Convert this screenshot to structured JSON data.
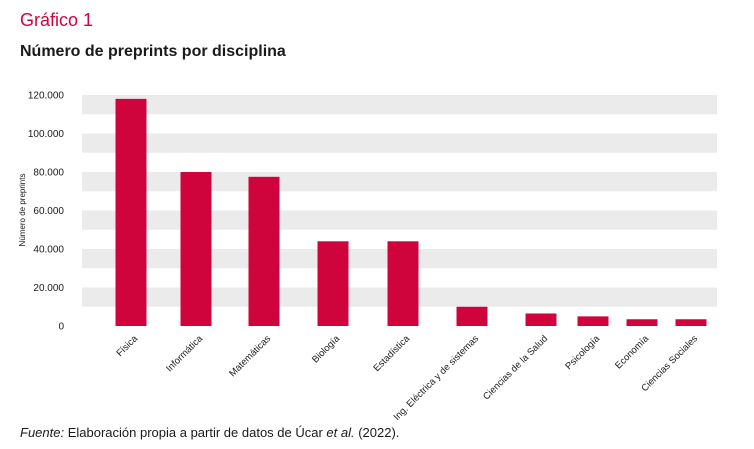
{
  "figure": {
    "label": "Gráfico 1",
    "title": "Número de preprints por disciplina"
  },
  "source": {
    "prefix": "Fuente:",
    "text": " Elaboración propia a partir de datos de Úcar ",
    "etal": "et al.",
    "suffix": " (2022)."
  },
  "colors": {
    "bar": "#d0043c",
    "band": "#ebebeb",
    "accent": "#d0043c",
    "text": "#1a1a1a"
  },
  "chart_data": {
    "type": "bar",
    "title": "Número de preprints por disciplina",
    "xlabel": "",
    "ylabel": "Número de preprints",
    "ylim": [
      0,
      120000
    ],
    "yticks": [
      0,
      20000,
      40000,
      60000,
      80000,
      100000,
      120000
    ],
    "ytick_labels": [
      "0",
      "20.000",
      "40.000",
      "60.000",
      "80.000",
      "100.000",
      "120.000"
    ],
    "categories": [
      "Física",
      "Informática",
      "Matemáticas",
      "Biología",
      "Estadística",
      "Ing. Eléctrica y de sistemas",
      "Ciencias de la Salud",
      "Psicología",
      "Economía",
      "Ciencias Sociales"
    ],
    "values": [
      118000,
      80000,
      77500,
      44000,
      44000,
      10000,
      6500,
      5000,
      3500,
      3500
    ],
    "grid": "alternating horizontal bands",
    "legend": "none"
  }
}
